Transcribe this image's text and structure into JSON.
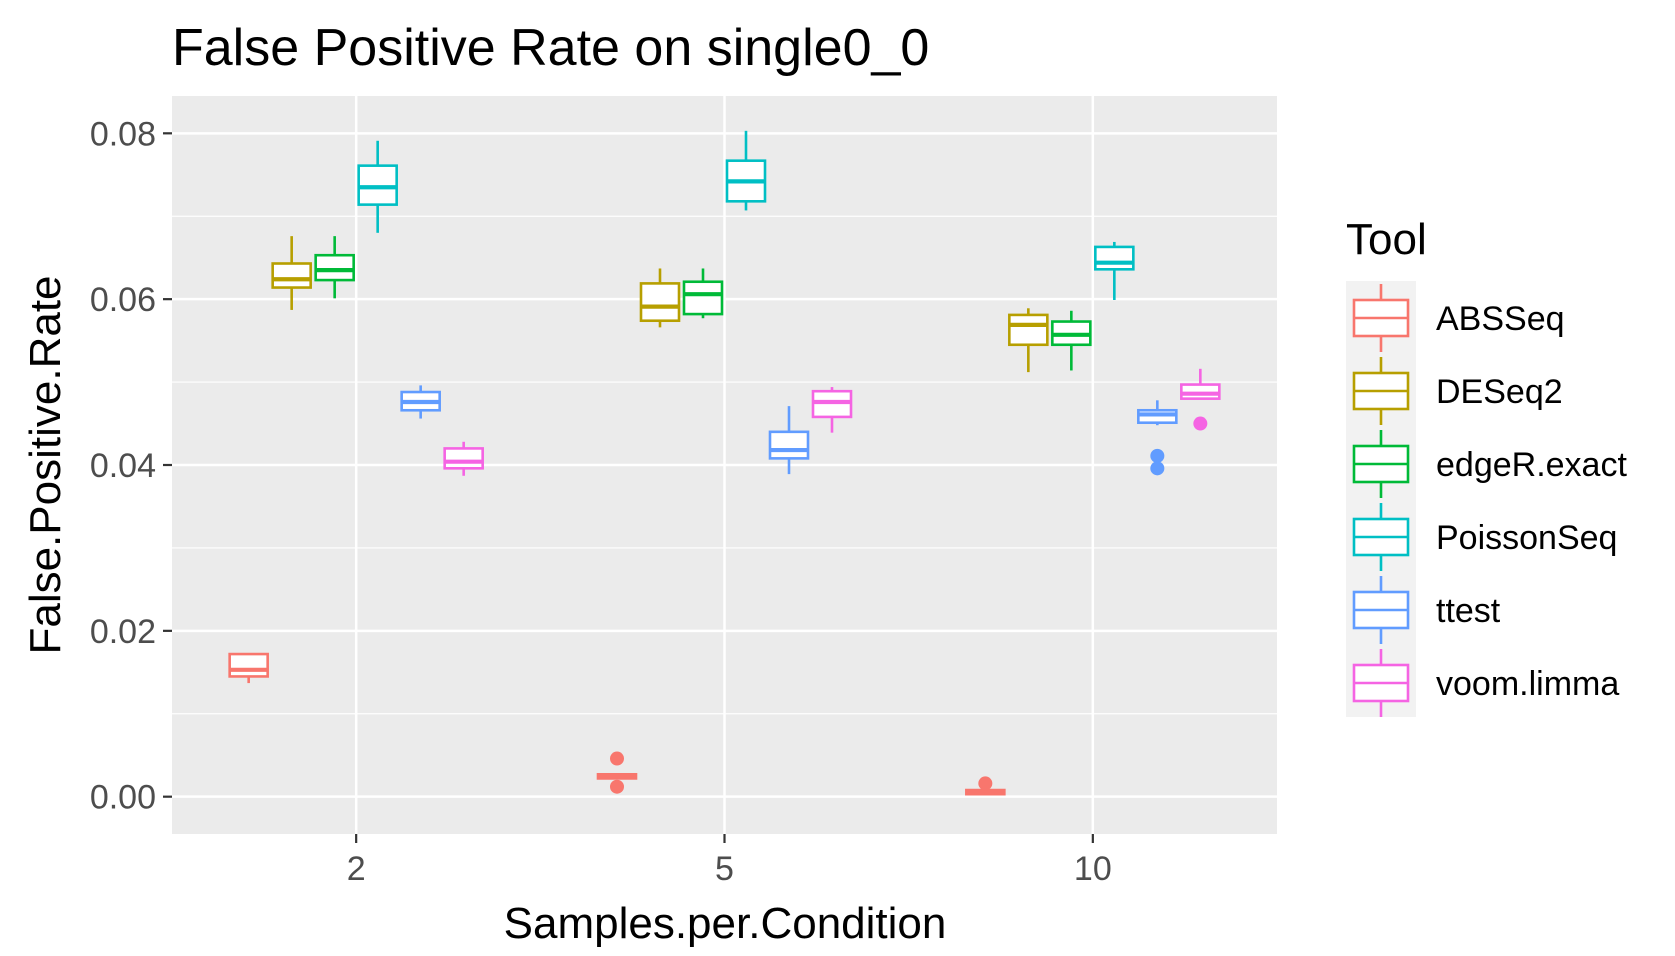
{
  "chart_data": {
    "type": "boxplot",
    "title": "False Positive Rate on single0_0",
    "xlabel": "Samples.per.Condition",
    "ylabel": "False.Positive.Rate",
    "categories": [
      "2",
      "5",
      "10"
    ],
    "yticks": [
      "0.00",
      "0.02",
      "0.04",
      "0.06",
      "0.08"
    ],
    "ylim": [
      -0.0045,
      0.0845
    ],
    "grid": true,
    "legend": {
      "title": "Tool",
      "position": "right"
    },
    "series": [
      {
        "name": "ABSSeq",
        "color": "#F8766D",
        "boxes": [
          {
            "category": "2",
            "min": 0.0137,
            "q1": 0.0145,
            "median": 0.0153,
            "q3": 0.0172,
            "max": 0.0172,
            "outliers": []
          },
          {
            "category": "5",
            "min": 0.0022,
            "q1": 0.0022,
            "median": 0.0025,
            "q3": 0.0027,
            "max": 0.0027,
            "outliers": [
              0.0046,
              0.0012
            ]
          },
          {
            "category": "10",
            "min": 0.0003,
            "q1": 0.0003,
            "median": 0.0005,
            "q3": 0.0008,
            "max": 0.0008,
            "outliers": [
              0.0016
            ]
          }
        ]
      },
      {
        "name": "DESeq2",
        "color": "#B79F00",
        "boxes": [
          {
            "category": "2",
            "min": 0.0587,
            "q1": 0.0614,
            "median": 0.0624,
            "q3": 0.0643,
            "max": 0.0676,
            "outliers": []
          },
          {
            "category": "5",
            "min": 0.0566,
            "q1": 0.0574,
            "median": 0.0591,
            "q3": 0.0619,
            "max": 0.0637,
            "outliers": []
          },
          {
            "category": "10",
            "min": 0.0512,
            "q1": 0.0545,
            "median": 0.0569,
            "q3": 0.0581,
            "max": 0.0589,
            "outliers": []
          }
        ]
      },
      {
        "name": "edgeR.exact",
        "color": "#00BA38",
        "boxes": [
          {
            "category": "2",
            "min": 0.0601,
            "q1": 0.0623,
            "median": 0.0635,
            "q3": 0.0653,
            "max": 0.0676,
            "outliers": []
          },
          {
            "category": "5",
            "min": 0.0577,
            "q1": 0.0582,
            "median": 0.0606,
            "q3": 0.0621,
            "max": 0.0637,
            "outliers": []
          },
          {
            "category": "10",
            "min": 0.0514,
            "q1": 0.0545,
            "median": 0.0557,
            "q3": 0.0573,
            "max": 0.0586,
            "outliers": []
          }
        ]
      },
      {
        "name": "PoissonSeq",
        "color": "#00BFC4",
        "boxes": [
          {
            "category": "2",
            "min": 0.068,
            "q1": 0.0714,
            "median": 0.0735,
            "q3": 0.0761,
            "max": 0.0791,
            "outliers": []
          },
          {
            "category": "5",
            "min": 0.0707,
            "q1": 0.0718,
            "median": 0.0742,
            "q3": 0.0767,
            "max": 0.0803,
            "outliers": []
          },
          {
            "category": "10",
            "min": 0.0599,
            "q1": 0.0636,
            "median": 0.0644,
            "q3": 0.0663,
            "max": 0.0669,
            "outliers": []
          }
        ]
      },
      {
        "name": "ttest",
        "color": "#619CFF",
        "boxes": [
          {
            "category": "2",
            "min": 0.0456,
            "q1": 0.0466,
            "median": 0.0476,
            "q3": 0.0488,
            "max": 0.0496,
            "outliers": []
          },
          {
            "category": "5",
            "min": 0.0389,
            "q1": 0.0408,
            "median": 0.0418,
            "q3": 0.044,
            "max": 0.0471,
            "outliers": []
          },
          {
            "category": "10",
            "min": 0.0448,
            "q1": 0.0451,
            "median": 0.0461,
            "q3": 0.0466,
            "max": 0.0478,
            "outliers": [
              0.0411,
              0.0396
            ]
          }
        ]
      },
      {
        "name": "voom.limma",
        "color": "#F564E3",
        "boxes": [
          {
            "category": "2",
            "min": 0.0387,
            "q1": 0.0396,
            "median": 0.0404,
            "q3": 0.042,
            "max": 0.0428,
            "outliers": []
          },
          {
            "category": "5",
            "min": 0.0439,
            "q1": 0.0458,
            "median": 0.0476,
            "q3": 0.0489,
            "max": 0.0494,
            "outliers": []
          },
          {
            "category": "10",
            "min": 0.048,
            "q1": 0.048,
            "median": 0.0486,
            "q3": 0.0497,
            "max": 0.0516,
            "outliers": [
              0.045
            ]
          }
        ]
      }
    ]
  }
}
